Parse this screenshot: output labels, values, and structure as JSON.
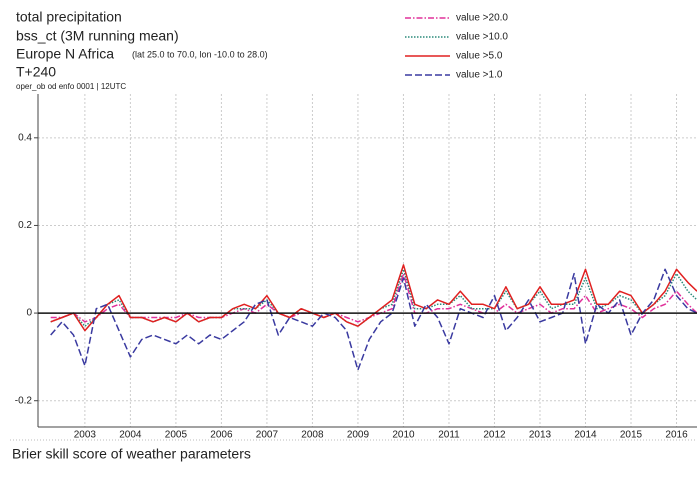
{
  "chart_data": {
    "type": "line",
    "title": "total precipitation",
    "subtitle": "bss_ct (3M running mean)",
    "region": "Europe N Africa",
    "region_detail": "(lat 25.0 to 70.0, lon -10.0 to 28.0)",
    "lead_time": "T+240",
    "source": "oper_ob od enfo 0001 | 12UTC",
    "x": [
      2002.25,
      2002.5,
      2002.75,
      2003,
      2003.25,
      2003.5,
      2003.75,
      2004,
      2004.25,
      2004.5,
      2004.75,
      2005,
      2005.25,
      2005.5,
      2005.75,
      2006,
      2006.25,
      2006.5,
      2006.75,
      2007,
      2007.25,
      2007.5,
      2007.75,
      2008,
      2008.25,
      2008.5,
      2008.75,
      2009,
      2009.25,
      2009.5,
      2009.75,
      2010,
      2010.25,
      2010.5,
      2010.75,
      2011,
      2011.25,
      2011.5,
      2011.75,
      2012,
      2012.25,
      2012.5,
      2012.75,
      2013,
      2013.25,
      2013.5,
      2013.75,
      2014,
      2014.25,
      2014.5,
      2014.75,
      2015,
      2015.25,
      2015.5,
      2015.75,
      2016,
      2016.25,
      2016.45
    ],
    "series": [
      {
        "name": "value >20.0",
        "color": "#e0309a",
        "dash": "dashdot",
        "values": [
          -0.01,
          -0.01,
          0.0,
          -0.02,
          -0.01,
          0.01,
          0.02,
          -0.01,
          -0.01,
          -0.01,
          -0.01,
          -0.01,
          0.0,
          -0.01,
          -0.01,
          -0.01,
          0.0,
          0.01,
          0.0,
          0.02,
          0.0,
          -0.01,
          0.0,
          0.0,
          -0.01,
          0.0,
          -0.01,
          -0.02,
          -0.01,
          0.0,
          0.01,
          0.09,
          0.0,
          0.0,
          0.01,
          0.01,
          0.02,
          0.01,
          0.0,
          0.0,
          0.02,
          0.0,
          0.01,
          0.02,
          0.0,
          0.01,
          0.01,
          0.04,
          0.0,
          0.01,
          0.02,
          0.01,
          -0.01,
          0.01,
          0.02,
          0.05,
          0.02,
          0.0
        ]
      },
      {
        "name": "value >10.0",
        "color": "#2a8a7a",
        "dash": "dotted",
        "values": [
          -0.02,
          -0.01,
          0.0,
          -0.03,
          -0.01,
          0.02,
          0.03,
          -0.01,
          -0.01,
          -0.02,
          -0.01,
          -0.02,
          0.0,
          -0.02,
          -0.01,
          -0.01,
          0.01,
          0.01,
          0.01,
          0.03,
          0.0,
          -0.01,
          0.01,
          0.0,
          -0.01,
          0.0,
          -0.02,
          -0.03,
          -0.01,
          0.01,
          0.02,
          0.1,
          0.01,
          0.01,
          0.02,
          0.02,
          0.04,
          0.01,
          0.01,
          0.01,
          0.05,
          0.01,
          0.02,
          0.05,
          0.01,
          0.02,
          0.02,
          0.08,
          0.01,
          0.02,
          0.04,
          0.03,
          0.0,
          0.02,
          0.04,
          0.09,
          0.05,
          0.03
        ]
      },
      {
        "name": "value >5.0",
        "color": "#e02020",
        "dash": "solid",
        "values": [
          -0.02,
          -0.01,
          0.0,
          -0.04,
          -0.01,
          0.02,
          0.04,
          -0.01,
          -0.01,
          -0.02,
          -0.01,
          -0.02,
          0.0,
          -0.02,
          -0.01,
          -0.01,
          0.01,
          0.02,
          0.01,
          0.04,
          0.0,
          -0.01,
          0.01,
          0.0,
          -0.01,
          0.0,
          -0.02,
          -0.03,
          -0.01,
          0.01,
          0.03,
          0.11,
          0.02,
          0.01,
          0.03,
          0.02,
          0.05,
          0.02,
          0.02,
          0.01,
          0.06,
          0.01,
          0.02,
          0.06,
          0.02,
          0.02,
          0.03,
          0.1,
          0.02,
          0.02,
          0.05,
          0.04,
          0.0,
          0.02,
          0.05,
          0.1,
          0.07,
          0.05
        ]
      },
      {
        "name": "value >1.0",
        "color": "#3a3aa0",
        "dash": "dashed",
        "values": [
          -0.05,
          -0.02,
          -0.05,
          -0.12,
          0.01,
          0.02,
          -0.04,
          -0.1,
          -0.06,
          -0.05,
          -0.06,
          -0.07,
          -0.05,
          -0.07,
          -0.05,
          -0.06,
          -0.04,
          -0.02,
          0.02,
          0.03,
          -0.05,
          -0.01,
          -0.02,
          -0.03,
          0.0,
          -0.01,
          -0.04,
          -0.13,
          -0.06,
          -0.02,
          0.0,
          0.08,
          -0.03,
          0.02,
          -0.01,
          -0.07,
          0.01,
          0.0,
          -0.01,
          0.04,
          -0.04,
          -0.01,
          0.03,
          -0.02,
          -0.01,
          0.0,
          0.09,
          -0.07,
          0.02,
          0.0,
          0.03,
          -0.05,
          0.0,
          0.03,
          0.1,
          0.04,
          0.01,
          0.0
        ]
      }
    ],
    "xlim": [
      2001.97,
      2016.45
    ],
    "xticks": [
      2003,
      2004,
      2005,
      2006,
      2007,
      2008,
      2009,
      2010,
      2011,
      2012,
      2013,
      2014,
      2015,
      2016
    ],
    "ylim": [
      -0.26,
      0.5
    ],
    "yticks": [
      -0.2,
      0,
      0.2,
      0.4
    ],
    "grid": true
  },
  "caption": "Brier skill score of weather parameters"
}
